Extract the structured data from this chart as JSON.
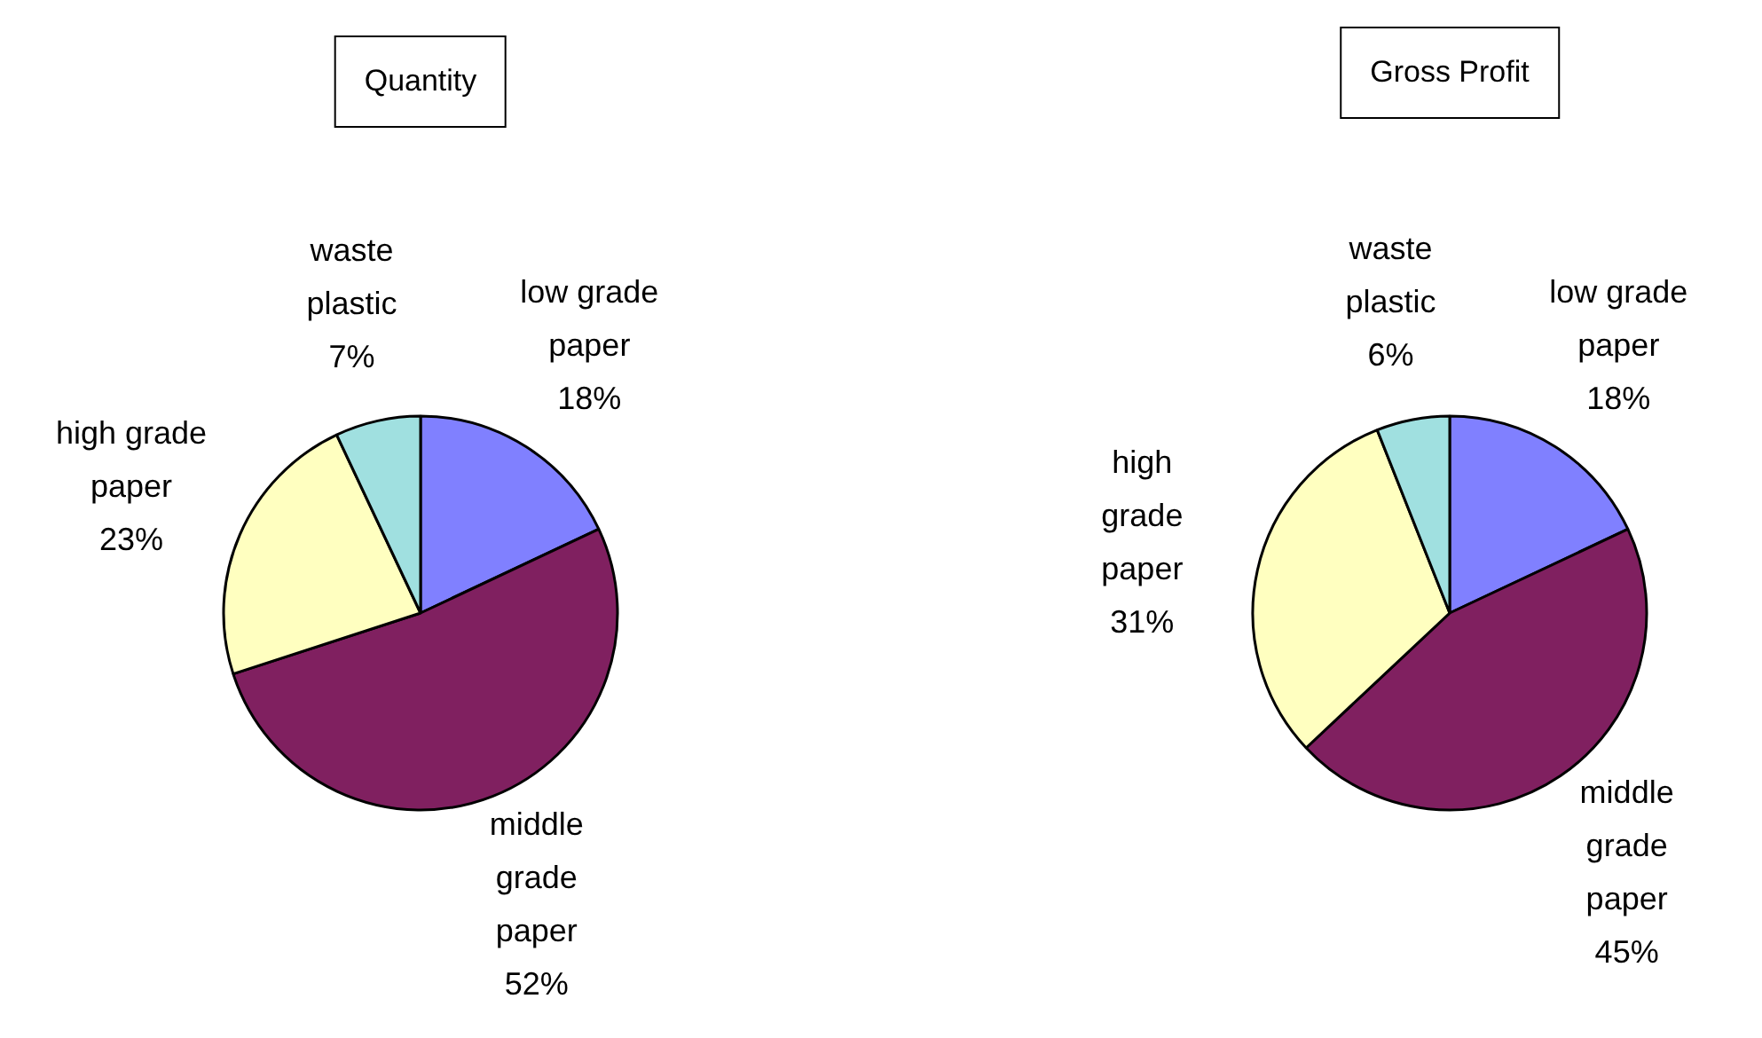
{
  "chart_data": [
    {
      "type": "pie",
      "title": "Quantity",
      "categories": [
        "low grade paper",
        "middle grade paper",
        "high grade paper",
        "waste plastic"
      ],
      "values": [
        18,
        52,
        23,
        7
      ],
      "value_labels": [
        "18%",
        "52%",
        "23%",
        "7%"
      ],
      "colors": [
        "#8080ff",
        "#802060",
        "#ffffc0",
        "#a0e0e0"
      ],
      "legend": false
    },
    {
      "type": "pie",
      "title": "Gross Profit",
      "categories": [
        "low grade paper",
        "middle grade paper",
        "high grade paper",
        "waste plastic"
      ],
      "values": [
        18,
        45,
        31,
        6
      ],
      "value_labels": [
        "18%",
        "45%",
        "31%",
        "6%"
      ],
      "colors": [
        "#8080ff",
        "#802060",
        "#ffffc0",
        "#a0e0e0"
      ],
      "legend": false
    }
  ]
}
